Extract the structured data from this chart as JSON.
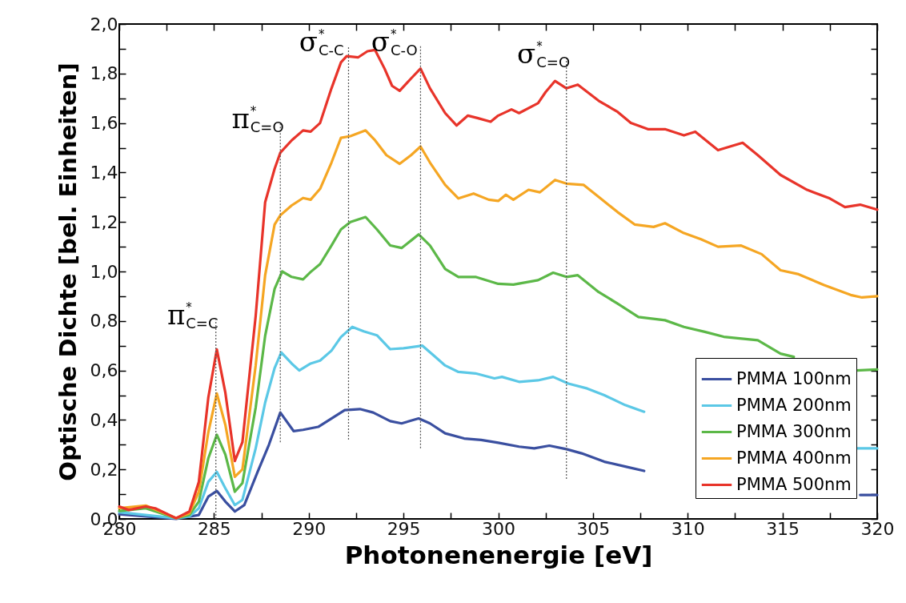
{
  "chart_data": {
    "type": "line",
    "xlabel": "Photonenenergie [eV]",
    "ylabel": "Optische Dichte [bel. Einheiten]",
    "xlim": [
      280,
      320
    ],
    "ylim": [
      0,
      2
    ],
    "xticks": [
      280,
      {
        "value": 282.5,
        "label": null
      },
      285,
      {
        "value": 287.5,
        "label": null
      },
      290,
      {
        "value": 292.5,
        "label": null
      },
      295,
      {
        "value": 297.5,
        "label": null
      },
      300,
      {
        "value": 302.5,
        "label": null
      },
      305,
      {
        "value": 307.5,
        "label": null
      },
      310,
      {
        "value": 312.5,
        "label": null
      },
      315,
      {
        "value": 317.5,
        "label": null
      },
      320
    ],
    "yticks": [
      {
        "value": 0,
        "label": "0,0"
      },
      {
        "value": 0.1,
        "label": null
      },
      {
        "value": 0.2,
        "label": "0,2"
      },
      {
        "value": 0.3,
        "label": null
      },
      {
        "value": 0.4,
        "label": "0,4"
      },
      {
        "value": 0.5,
        "label": null
      },
      {
        "value": 0.6,
        "label": "0,6"
      },
      {
        "value": 0.7,
        "label": null
      },
      {
        "value": 0.8,
        "label": "0,8"
      },
      {
        "value": 0.9,
        "label": null
      },
      {
        "value": 1.0,
        "label": "1,0"
      },
      {
        "value": 1.1,
        "label": null
      },
      {
        "value": 1.2,
        "label": "1,2"
      },
      {
        "value": 1.3,
        "label": null
      },
      {
        "value": 1.4,
        "label": "1,4"
      },
      {
        "value": 1.5,
        "label": null
      },
      {
        "value": 1.6,
        "label": "1,6"
      },
      {
        "value": 1.7,
        "label": null
      },
      {
        "value": 1.8,
        "label": "1,8"
      },
      {
        "value": 1.9,
        "label": null
      },
      {
        "value": 2.0,
        "label": "2,0"
      }
    ],
    "grid": false,
    "legend": "bottom right",
    "line_style": "solid",
    "marker": "none",
    "ref_lines": [
      {
        "axis": "x",
        "value": 285.1,
        "label": "π$^{*}$$_{C=C}$",
        "color": "#555555",
        "line_style": "dotted"
      },
      {
        "axis": "x",
        "value": 288.5,
        "label": "π$^{*}$$_{C=O}$",
        "color": "#555555",
        "line_style": "dotted"
      },
      {
        "axis": "x",
        "value": 292.1,
        "label": "σ$^{*}$$_{C-C}$",
        "color": "#555555",
        "line_style": "dotted"
      },
      {
        "axis": "x",
        "value": 295.9,
        "label": "σ$^{*}$$_{C-O}$",
        "color": "#555555",
        "line_style": "dotted"
      },
      {
        "axis": "x",
        "value": 303.6,
        "label": "σ$^{*}$$_{C=O}$",
        "color": "#555555",
        "line_style": "dotted"
      }
    ],
    "series": [
      {
        "name": "PMMA 100nm",
        "color": "#3a4fa0",
        "x": [
          280,
          283.0,
          284.2,
          284.7,
          285.15,
          285.6,
          286.1,
          286.6,
          287.3,
          287.9,
          288.5,
          289.2,
          289.7,
          290.5,
          291.2,
          291.9,
          292.7,
          293.4,
          294.3,
          294.9,
          295.8,
          296.4,
          297.2,
          298.2,
          299.1,
          300,
          301.1,
          301.9,
          302.7,
          303.6,
          304.4,
          305.6,
          306.8,
          307.7,
          313,
          319.1,
          320
        ],
        "values": [
          0.019,
          0.0,
          0.016,
          0.09,
          0.113,
          0.07,
          0.03,
          0.056,
          0.19,
          0.3,
          0.43,
          0.355,
          0.36,
          0.372,
          0.406,
          0.44,
          0.444,
          0.43,
          0.395,
          0.386,
          0.406,
          0.386,
          0.346,
          0.325,
          0.319,
          0.308,
          0.292,
          0.285,
          0.296,
          0.282,
          0.265,
          0.231,
          0.21,
          0.194,
          null,
          0.097,
          0.097
        ]
      },
      {
        "name": "PMMA 200nm",
        "color": "#5bc8e6",
        "x": [
          280,
          283.0,
          283.7,
          284.2,
          284.7,
          285.15,
          285.6,
          286.1,
          286.5,
          287.2,
          287.7,
          288.2,
          288.55,
          289.1,
          289.5,
          290.1,
          290.6,
          291.2,
          291.7,
          292.3,
          292.9,
          293.6,
          294.3,
          295.0,
          296.0,
          296.6,
          297.2,
          297.9,
          298.8,
          299.8,
          300.2,
          301.1,
          302.1,
          302.9,
          303.7,
          304.7,
          305.6,
          306.7,
          307.7,
          313,
          318.9,
          320
        ],
        "values": [
          0.027,
          0.003,
          0.01,
          0.043,
          0.15,
          0.19,
          0.124,
          0.056,
          0.077,
          0.285,
          0.47,
          0.61,
          0.673,
          0.628,
          0.6,
          0.628,
          0.64,
          0.68,
          0.735,
          0.776,
          0.758,
          0.742,
          0.686,
          0.69,
          0.7,
          0.66,
          0.62,
          0.594,
          0.588,
          0.568,
          0.574,
          0.554,
          0.56,
          0.574,
          0.547,
          0.527,
          0.5,
          0.46,
          0.433,
          null,
          0.285,
          0.285
        ]
      },
      {
        "name": "PMMA 300nm",
        "color": "#5cb848",
        "x": [
          280,
          281.4,
          283.0,
          283.7,
          284.2,
          284.7,
          285.15,
          285.6,
          286.1,
          286.5,
          287.2,
          287.7,
          288.2,
          288.6,
          289.1,
          289.7,
          290.1,
          290.6,
          291.2,
          291.7,
          292.2,
          293.0,
          293.6,
          294.3,
          294.9,
          295.4,
          295.8,
          296.4,
          297.2,
          297.9,
          298.8,
          300,
          300.8,
          302.1,
          302.9,
          303.6,
          304.2,
          305.3,
          306.3,
          307.4,
          308.8,
          309.8,
          310.9,
          311.9,
          313.7,
          314.9,
          315.6,
          317,
          318.9,
          320
        ],
        "values": [
          0.032,
          0.043,
          0.003,
          0.016,
          0.07,
          0.245,
          0.34,
          0.26,
          0.11,
          0.145,
          0.45,
          0.74,
          0.93,
          1.0,
          0.978,
          0.968,
          0.998,
          1.03,
          1.105,
          1.17,
          1.2,
          1.22,
          1.17,
          1.105,
          1.095,
          1.125,
          1.15,
          1.105,
          1.01,
          0.978,
          0.978,
          0.95,
          0.947,
          0.965,
          0.995,
          0.978,
          0.985,
          0.917,
          0.87,
          0.816,
          0.803,
          0.776,
          0.756,
          0.736,
          0.722,
          0.668,
          0.655,
          null,
          0.6,
          0.604
        ]
      },
      {
        "name": "PMMA 400nm",
        "color": "#f5a623",
        "x": [
          280,
          281.4,
          283.0,
          283.7,
          284.2,
          284.7,
          285.15,
          285.6,
          286.1,
          286.5,
          287.2,
          287.7,
          288.2,
          288.5,
          289.1,
          289.7,
          290.1,
          290.6,
          291.2,
          291.7,
          292.2,
          293.0,
          293.5,
          294.1,
          294.8,
          295.4,
          295.9,
          296.4,
          297.2,
          297.9,
          298.7,
          299.5,
          300,
          300.4,
          300.8,
          301.6,
          302.2,
          303.0,
          303.6,
          304.5,
          305.4,
          306.3,
          307.2,
          308.2,
          308.8,
          309.8,
          310.7,
          311.6,
          312.8,
          313.9,
          314.9,
          315.8,
          317.2,
          318.6,
          319.2,
          320
        ],
        "values": [
          0.043,
          0.054,
          0.003,
          0.023,
          0.11,
          0.35,
          0.507,
          0.38,
          0.17,
          0.2,
          0.62,
          0.985,
          1.19,
          1.227,
          1.267,
          1.297,
          1.29,
          1.334,
          1.44,
          1.54,
          1.547,
          1.57,
          1.53,
          1.47,
          1.435,
          1.47,
          1.505,
          1.44,
          1.35,
          1.295,
          1.315,
          1.29,
          1.285,
          1.31,
          1.29,
          1.33,
          1.32,
          1.37,
          1.355,
          1.35,
          1.295,
          1.24,
          1.19,
          1.18,
          1.195,
          1.155,
          1.13,
          1.1,
          1.105,
          1.07,
          1.005,
          0.99,
          0.945,
          0.905,
          0.895,
          0.9
        ]
      },
      {
        "name": "PMMA 500nm",
        "color": "#e8342a",
        "x": [
          280,
          280.5,
          281.4,
          281.9,
          283.0,
          283.7,
          284.2,
          284.7,
          285.15,
          285.6,
          286.1,
          286.5,
          287.2,
          287.7,
          288.2,
          288.5,
          289.1,
          289.7,
          290.1,
          290.6,
          291.2,
          291.7,
          292.0,
          292.6,
          293.1,
          293.5,
          294.0,
          294.4,
          294.8,
          295.4,
          295.9,
          296.4,
          297.2,
          297.8,
          298.4,
          298.9,
          299.6,
          300,
          300.7,
          301.1,
          302.1,
          302.5,
          303.0,
          303.6,
          304.2,
          305.3,
          306.3,
          307.0,
          307.9,
          308.8,
          309.8,
          310.4,
          311.6,
          312.9,
          313.7,
          314.9,
          316.3,
          317.5,
          318.3,
          319.1,
          320
        ],
        "values": [
          0.05,
          0.036,
          0.05,
          0.043,
          0.003,
          0.03,
          0.15,
          0.49,
          0.685,
          0.51,
          0.234,
          0.31,
          0.82,
          1.28,
          1.415,
          1.48,
          1.53,
          1.57,
          1.565,
          1.6,
          1.74,
          1.845,
          1.87,
          1.865,
          1.89,
          1.895,
          1.82,
          1.75,
          1.73,
          1.78,
          1.82,
          1.74,
          1.64,
          1.59,
          1.63,
          1.62,
          1.605,
          1.63,
          1.655,
          1.64,
          1.68,
          1.725,
          1.77,
          1.74,
          1.755,
          1.69,
          1.645,
          1.6,
          1.575,
          1.575,
          1.55,
          1.565,
          1.49,
          1.52,
          1.47,
          1.39,
          1.33,
          1.295,
          1.26,
          1.27,
          1.25
        ]
      }
    ]
  }
}
